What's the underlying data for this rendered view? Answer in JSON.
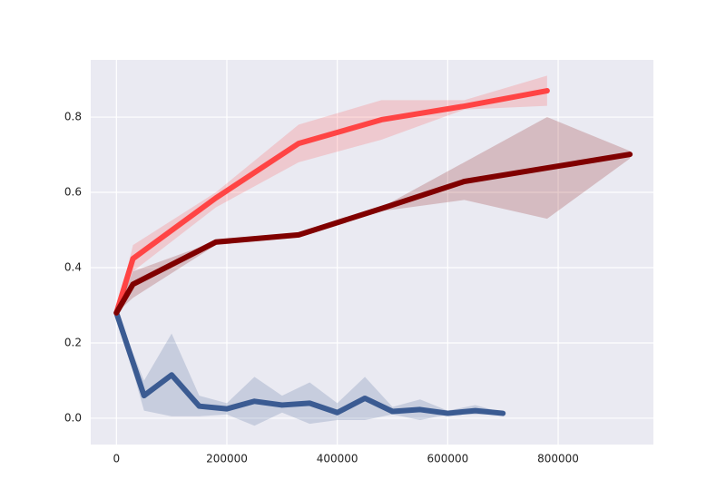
{
  "chart_data": {
    "type": "line",
    "xlim": [
      -46500,
      972500
    ],
    "ylim": [
      -0.07,
      0.952
    ],
    "xticks": [
      0,
      200000,
      400000,
      600000,
      800000
    ],
    "yticks": [
      {
        "value": 0,
        "label": "0.0"
      },
      0.2,
      0.4,
      0.6,
      0.8
    ],
    "grid": true,
    "series": [
      {
        "color": "#3b5b92",
        "x": [
          0,
          50000,
          100000,
          150000,
          200000,
          250000,
          300000,
          350000,
          400000,
          450000,
          500000,
          550000,
          600000,
          650000,
          700000
        ],
        "values": [
          0.28,
          0.06,
          0.115,
          0.032,
          0.025,
          0.045,
          0.035,
          0.04,
          0.015,
          0.053,
          0.018,
          0.023,
          0.013,
          0.02,
          0.013
        ],
        "upper": [
          0.28,
          0.1,
          0.225,
          0.06,
          0.04,
          0.11,
          0.06,
          0.095,
          0.04,
          0.11,
          0.03,
          0.05,
          0.02,
          0.035,
          0.015
        ],
        "lower": [
          0.28,
          0.02,
          0.005,
          0.005,
          0.01,
          -0.02,
          0.015,
          -0.015,
          -0.005,
          -0.005,
          0.01,
          -0.005,
          0.01,
          0.01,
          0.01
        ]
      },
      {
        "color": "#ff4444",
        "x": [
          0,
          30000,
          180000,
          330000,
          480000,
          630000,
          780000
        ],
        "values": [
          0.28,
          0.424,
          0.585,
          0.73,
          0.793,
          0.829,
          0.87
        ],
        "upper": [
          0.28,
          0.46,
          0.6,
          0.78,
          0.845,
          0.845,
          0.91
        ],
        "lower": [
          0.28,
          0.39,
          0.56,
          0.68,
          0.74,
          0.82,
          0.83
        ]
      },
      {
        "color": "#800000",
        "x": [
          0,
          30000,
          180000,
          330000,
          480000,
          630000,
          780000,
          930000
        ],
        "values": [
          0.28,
          0.356,
          0.468,
          0.487,
          0.557,
          0.629,
          0.665,
          0.701
        ],
        "upper": [
          0.28,
          0.39,
          0.47,
          0.49,
          0.56,
          0.68,
          0.8,
          0.71
        ],
        "lower": [
          0.28,
          0.32,
          0.46,
          0.48,
          0.55,
          0.58,
          0.53,
          0.69
        ]
      }
    ]
  }
}
